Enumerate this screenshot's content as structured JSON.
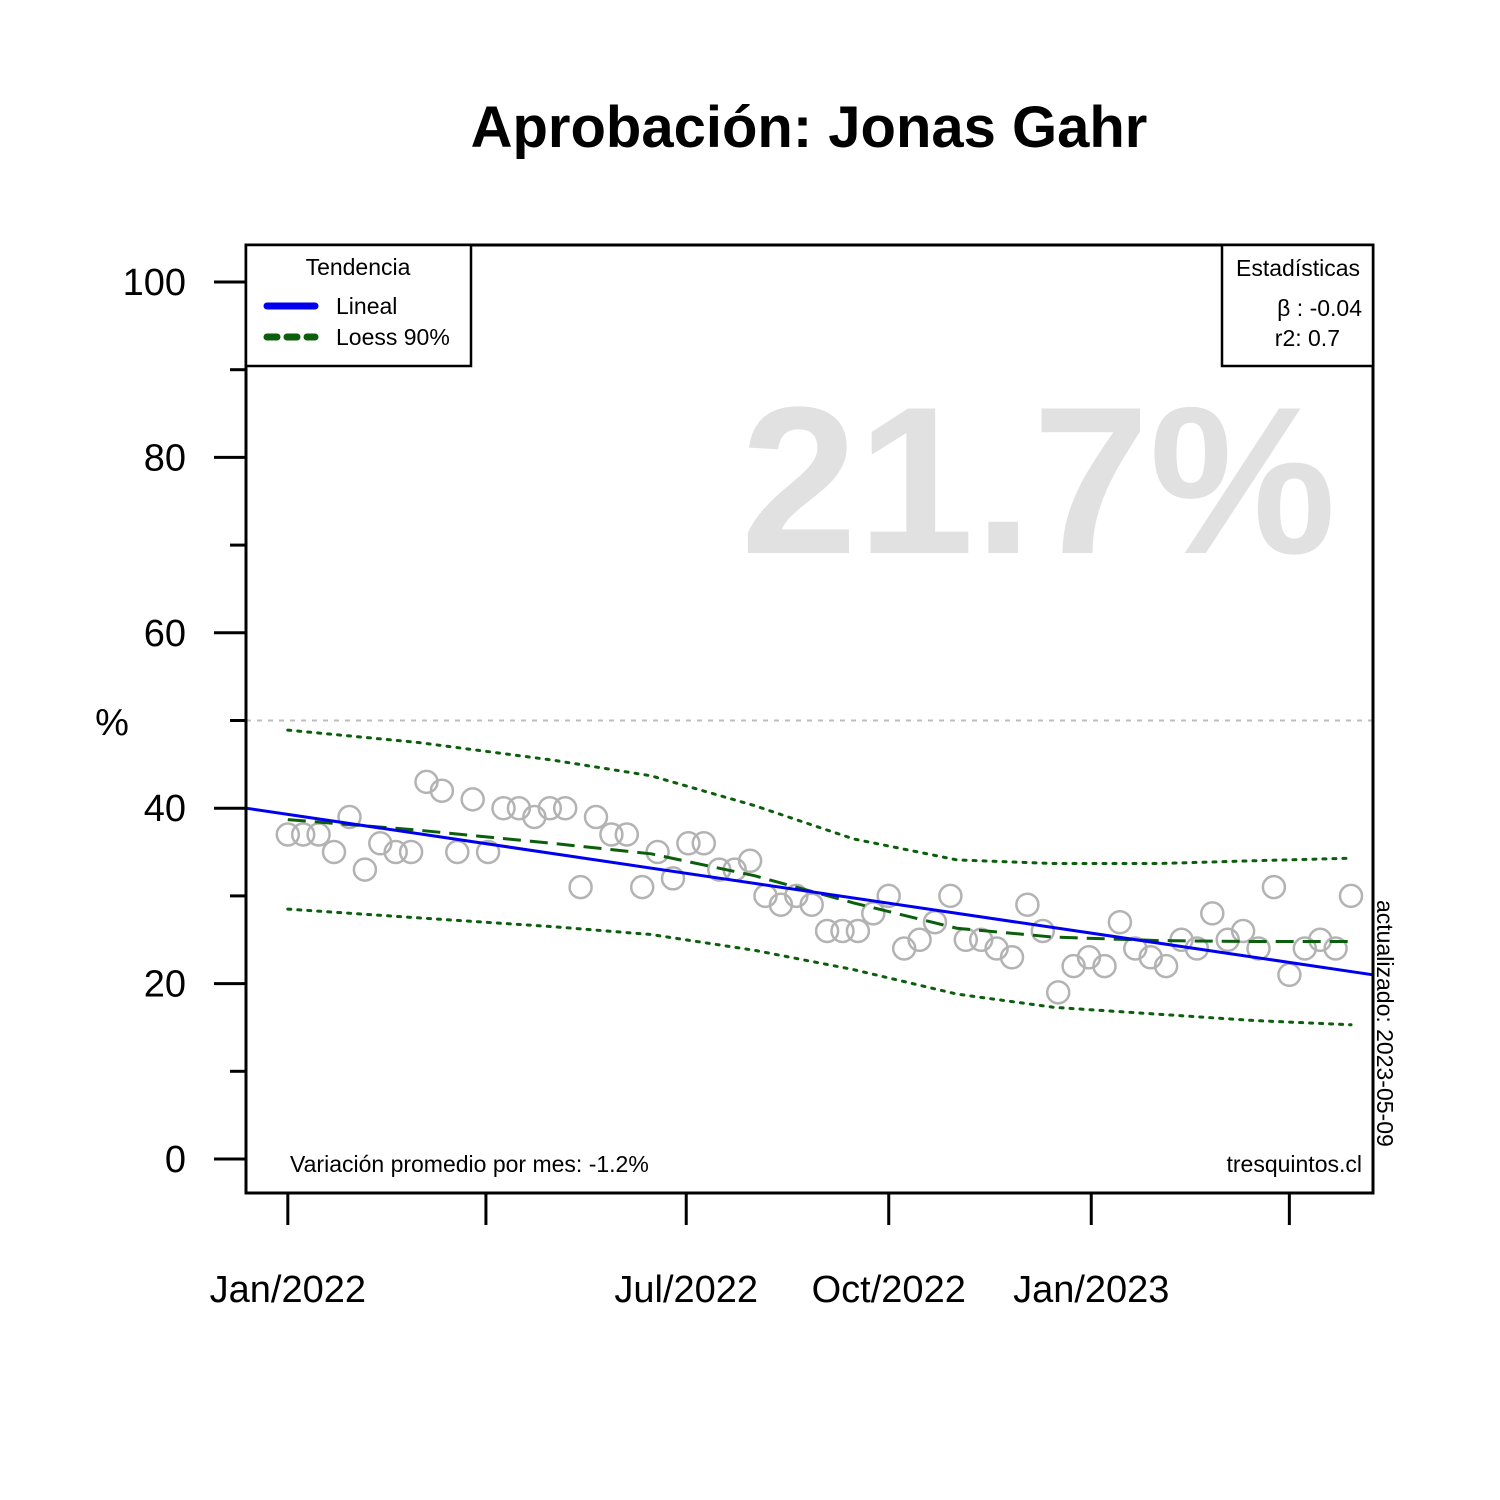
{
  "chart_data": {
    "type": "scatter",
    "title": "Aprobación: Jonas Gahr",
    "ylabel": "%",
    "xlabel": "",
    "ylim": [
      0,
      100
    ],
    "y_ticks": [
      0,
      20,
      40,
      60,
      80,
      100
    ],
    "y_minor_ticks": [
      10,
      30,
      50,
      70,
      90
    ],
    "x_ticks": [
      {
        "date": "2022-01-01",
        "label": "Jan/2022"
      },
      {
        "date": "2022-04-01",
        "label": ""
      },
      {
        "date": "2022-07-01",
        "label": "Jul/2022"
      },
      {
        "date": "2022-10-01",
        "label": "Oct/2022"
      },
      {
        "date": "2023-01-01",
        "label": "Jan/2023"
      },
      {
        "date": "2023-04-01",
        "label": ""
      }
    ],
    "xlim": [
      "2021-12-13",
      "2023-05-09"
    ],
    "reference_line": {
      "y": 50,
      "style": "dotted",
      "color": "#bdbdbd"
    },
    "big_value": "21.7%",
    "points": [
      {
        "x": "2022-01-01",
        "y": 37
      },
      {
        "x": "2022-01-08",
        "y": 37
      },
      {
        "x": "2022-01-15",
        "y": 37
      },
      {
        "x": "2022-01-22",
        "y": 35
      },
      {
        "x": "2022-01-29",
        "y": 39
      },
      {
        "x": "2022-02-05",
        "y": 33
      },
      {
        "x": "2022-02-12",
        "y": 36
      },
      {
        "x": "2022-02-19",
        "y": 35
      },
      {
        "x": "2022-02-26",
        "y": 35
      },
      {
        "x": "2022-03-05",
        "y": 43
      },
      {
        "x": "2022-03-12",
        "y": 42
      },
      {
        "x": "2022-03-19",
        "y": 35
      },
      {
        "x": "2022-03-26",
        "y": 41
      },
      {
        "x": "2022-04-02",
        "y": 35
      },
      {
        "x": "2022-04-09",
        "y": 40
      },
      {
        "x": "2022-04-16",
        "y": 40
      },
      {
        "x": "2022-04-23",
        "y": 39
      },
      {
        "x": "2022-04-30",
        "y": 40
      },
      {
        "x": "2022-05-07",
        "y": 40
      },
      {
        "x": "2022-05-14",
        "y": 31
      },
      {
        "x": "2022-05-21",
        "y": 39
      },
      {
        "x": "2022-05-28",
        "y": 37
      },
      {
        "x": "2022-06-04",
        "y": 37
      },
      {
        "x": "2022-06-11",
        "y": 31
      },
      {
        "x": "2022-06-18",
        "y": 35
      },
      {
        "x": "2022-06-25",
        "y": 32
      },
      {
        "x": "2022-07-02",
        "y": 36
      },
      {
        "x": "2022-07-09",
        "y": 36
      },
      {
        "x": "2022-07-16",
        "y": 33
      },
      {
        "x": "2022-07-23",
        "y": 33
      },
      {
        "x": "2022-07-30",
        "y": 34
      },
      {
        "x": "2022-08-06",
        "y": 30
      },
      {
        "x": "2022-08-13",
        "y": 29
      },
      {
        "x": "2022-08-20",
        "y": 30
      },
      {
        "x": "2022-08-27",
        "y": 29
      },
      {
        "x": "2022-09-03",
        "y": 26
      },
      {
        "x": "2022-09-10",
        "y": 26
      },
      {
        "x": "2022-09-17",
        "y": 26
      },
      {
        "x": "2022-09-24",
        "y": 28
      },
      {
        "x": "2022-10-01",
        "y": 30
      },
      {
        "x": "2022-10-08",
        "y": 24
      },
      {
        "x": "2022-10-15",
        "y": 25
      },
      {
        "x": "2022-10-22",
        "y": 27
      },
      {
        "x": "2022-10-29",
        "y": 30
      },
      {
        "x": "2022-11-05",
        "y": 25
      },
      {
        "x": "2022-11-12",
        "y": 25
      },
      {
        "x": "2022-11-19",
        "y": 24
      },
      {
        "x": "2022-11-26",
        "y": 23
      },
      {
        "x": "2022-12-03",
        "y": 29
      },
      {
        "x": "2022-12-10",
        "y": 26
      },
      {
        "x": "2022-12-17",
        "y": 19
      },
      {
        "x": "2022-12-24",
        "y": 22
      },
      {
        "x": "2022-12-31",
        "y": 23
      },
      {
        "x": "2023-01-07",
        "y": 22
      },
      {
        "x": "2023-01-14",
        "y": 27
      },
      {
        "x": "2023-01-21",
        "y": 24
      },
      {
        "x": "2023-01-28",
        "y": 23
      },
      {
        "x": "2023-02-04",
        "y": 22
      },
      {
        "x": "2023-02-11",
        "y": 25
      },
      {
        "x": "2023-02-18",
        "y": 24
      },
      {
        "x": "2023-02-25",
        "y": 28
      },
      {
        "x": "2023-03-04",
        "y": 25
      },
      {
        "x": "2023-03-11",
        "y": 26
      },
      {
        "x": "2023-03-18",
        "y": 24
      },
      {
        "x": "2023-03-25",
        "y": 31
      },
      {
        "x": "2023-04-01",
        "y": 21
      },
      {
        "x": "2023-04-08",
        "y": 24
      },
      {
        "x": "2023-04-15",
        "y": 25
      },
      {
        "x": "2023-04-22",
        "y": 24
      },
      {
        "x": "2023-04-29",
        "y": 30
      }
    ],
    "linear_trend": {
      "name": "Lineal",
      "color": "#0000ee",
      "points": [
        {
          "x": "2021-12-13",
          "y": 40.0
        },
        {
          "x": "2023-05-09",
          "y": 21.0
        }
      ]
    },
    "loess": {
      "name": "Loess 90%",
      "color": "#0b5e0b",
      "fit": [
        {
          "x": "2022-01-01",
          "y": 38.7
        },
        {
          "x": "2022-03-01",
          "y": 37.5
        },
        {
          "x": "2022-05-01",
          "y": 36.0
        },
        {
          "x": "2022-06-15",
          "y": 34.8
        },
        {
          "x": "2022-08-01",
          "y": 32.3
        },
        {
          "x": "2022-09-15",
          "y": 29.2
        },
        {
          "x": "2022-11-01",
          "y": 26.3
        },
        {
          "x": "2022-12-15",
          "y": 25.3
        },
        {
          "x": "2023-02-01",
          "y": 24.9
        },
        {
          "x": "2023-03-15",
          "y": 24.8
        },
        {
          "x": "2023-04-29",
          "y": 24.8
        }
      ],
      "upper": [
        {
          "x": "2022-01-01",
          "y": 48.9
        },
        {
          "x": "2022-03-01",
          "y": 47.5
        },
        {
          "x": "2022-05-01",
          "y": 45.5
        },
        {
          "x": "2022-06-15",
          "y": 43.7
        },
        {
          "x": "2022-08-01",
          "y": 40.3
        },
        {
          "x": "2022-09-15",
          "y": 36.5
        },
        {
          "x": "2022-11-01",
          "y": 34.1
        },
        {
          "x": "2022-12-15",
          "y": 33.7
        },
        {
          "x": "2023-02-01",
          "y": 33.7
        },
        {
          "x": "2023-03-15",
          "y": 34.0
        },
        {
          "x": "2023-04-29",
          "y": 34.3
        }
      ],
      "lower": [
        {
          "x": "2022-01-01",
          "y": 28.5
        },
        {
          "x": "2022-03-01",
          "y": 27.5
        },
        {
          "x": "2022-05-01",
          "y": 26.5
        },
        {
          "x": "2022-06-15",
          "y": 25.6
        },
        {
          "x": "2022-08-01",
          "y": 23.8
        },
        {
          "x": "2022-09-15",
          "y": 21.6
        },
        {
          "x": "2022-11-01",
          "y": 18.8
        },
        {
          "x": "2022-12-15",
          "y": 17.3
        },
        {
          "x": "2023-02-01",
          "y": 16.5
        },
        {
          "x": "2023-03-15",
          "y": 15.8
        },
        {
          "x": "2023-04-29",
          "y": 15.3
        }
      ]
    },
    "point_color": "#b3b3b3",
    "legend": {
      "title": "Tendencia",
      "position": "top-left",
      "entries": [
        {
          "label": "Lineal",
          "color": "#0000ee",
          "style": "solid"
        },
        {
          "label": "Loess 90%",
          "color": "#0b5e0b",
          "style": "dashed"
        }
      ]
    },
    "stats_box": {
      "title": "Estadísticas",
      "position": "top-right",
      "beta": "β : -0.04",
      "r2": "r2: 0.7"
    },
    "footer_left": "Variación promedio por mes: -1.2%",
    "footer_right": "tresquintos.cl",
    "updated": "actualizado: 2023-05-09"
  }
}
